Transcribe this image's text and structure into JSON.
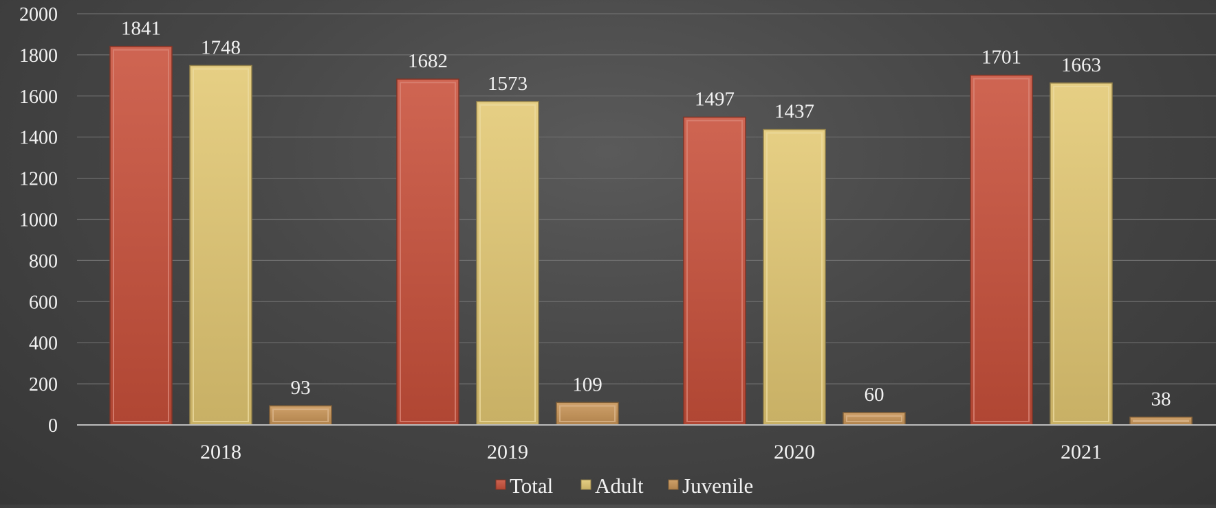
{
  "chart_data": {
    "type": "bar",
    "title": "",
    "xlabel": "",
    "ylabel": "",
    "categories": [
      "2018",
      "2019",
      "2020",
      "2021"
    ],
    "series": [
      {
        "name": "Total",
        "values": [
          1841,
          1682,
          1497,
          1701
        ],
        "color": "#c8503a"
      },
      {
        "name": "Adult",
        "values": [
          1748,
          1573,
          1437,
          1663
        ],
        "color": "#e3c873"
      },
      {
        "name": "Juvenile",
        "values": [
          93,
          109,
          60,
          38
        ],
        "color": "#c89456"
      }
    ],
    "ylim": [
      0,
      2000
    ],
    "yticks": [
      "0",
      "200",
      "400",
      "600",
      "800",
      "1000",
      "1200",
      "1400",
      "1600",
      "1800",
      "2000"
    ],
    "data_labels": true,
    "grid": true,
    "legend": "bottom-center"
  }
}
